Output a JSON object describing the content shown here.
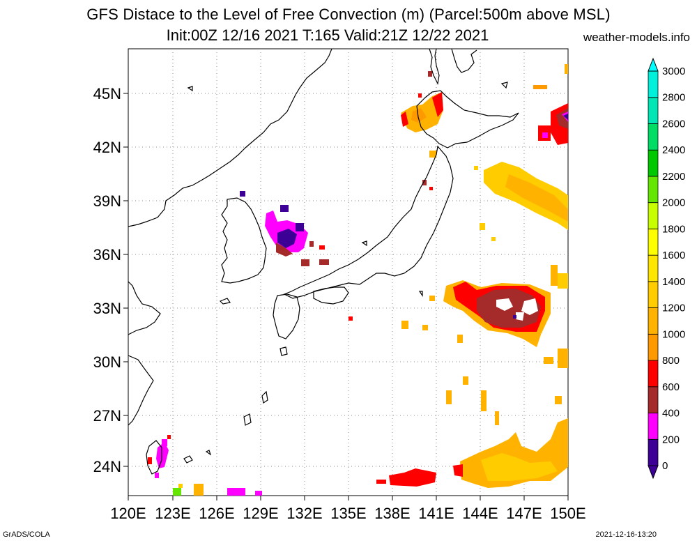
{
  "title_line1": "GFS Distace to the Level of Free Convection (m) (Parcel:500m above MSL)",
  "title_line2": "Init:00Z 12/16 2021 T:165 Valid:21Z 12/22 2021",
  "site": "weather-models.info",
  "footer_left": "GrADS/COLA",
  "footer_right": "2021-12-16-13:20",
  "lat_labels": [
    "45N",
    "42N",
    "39N",
    "36N",
    "33N",
    "30N",
    "27N",
    "24N"
  ],
  "lon_labels": [
    "120E",
    "123E",
    "126E",
    "129E",
    "132E",
    "135E",
    "138E",
    "141E",
    "144E",
    "147E",
    "150E"
  ],
  "colorbar": {
    "labels": [
      "0",
      "200",
      "400",
      "600",
      "800",
      "1000",
      "1200",
      "1400",
      "1600",
      "1800",
      "2000",
      "2200",
      "2400",
      "2600",
      "2800",
      "3000"
    ],
    "colors": [
      "#3c0096",
      "#ff00ff",
      "#a52a2a",
      "#ff0000",
      "#ff9900",
      "#ffb300",
      "#ffcc00",
      "#ffe600",
      "#ffff00",
      "#c8ff00",
      "#64e600",
      "#00c800",
      "#00dc64",
      "#00e6b4",
      "#00f0dc",
      "#00ffff"
    ]
  }
}
